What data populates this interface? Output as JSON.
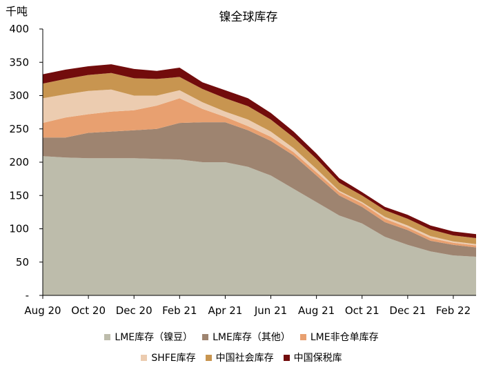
{
  "chart_data": {
    "type": "area",
    "stacked": true,
    "title": "镍全球库存",
    "unit_label": "千吨",
    "ylim": [
      0,
      400
    ],
    "y_ticks": [
      0,
      50,
      100,
      150,
      200,
      250,
      300,
      350,
      400
    ],
    "y_tick_labels": [
      "-",
      "50",
      "100",
      "150",
      "200",
      "250",
      "300",
      "350",
      "400"
    ],
    "x": [
      "2020-08",
      "2020-09",
      "2020-10",
      "2020-11",
      "2020-12",
      "2021-01",
      "2021-02",
      "2021-03",
      "2021-04",
      "2021-05",
      "2021-06",
      "2021-07",
      "2021-08",
      "2021-09",
      "2021-10",
      "2021-11",
      "2021-12",
      "2022-01",
      "2022-02",
      "2022-03"
    ],
    "x_tick_labels": [
      "Aug 20",
      "Oct 20",
      "Dec 20",
      "Feb 21",
      "Apr 21",
      "Jun 21",
      "Aug 21",
      "Oct 21",
      "Dec 21",
      "Feb 22"
    ],
    "series": [
      {
        "name": "LME库存（镍豆）",
        "color": "#bdbcab",
        "values": [
          209,
          207,
          206,
          206,
          206,
          205,
          204,
          200,
          200,
          193,
          180,
          160,
          140,
          120,
          108,
          88,
          76,
          66,
          60,
          58
        ]
      },
      {
        "name": "LME库存（其他）",
        "color": "#9e8470",
        "values": [
          28,
          30,
          38,
          40,
          42,
          45,
          55,
          60,
          60,
          55,
          52,
          50,
          40,
          30,
          25,
          22,
          22,
          16,
          16,
          14
        ]
      },
      {
        "name": "LME非仓单库存",
        "color": "#e8a070",
        "values": [
          22,
          30,
          28,
          30,
          30,
          35,
          37,
          20,
          8,
          6,
          6,
          5,
          5,
          5,
          5,
          5,
          4,
          4,
          3,
          3
        ]
      },
      {
        "name": "SHFE库存",
        "color": "#ecccb0",
        "values": [
          37,
          35,
          35,
          33,
          22,
          15,
          12,
          10,
          8,
          10,
          8,
          6,
          5,
          2,
          2,
          3,
          3,
          3,
          2,
          2
        ]
      },
      {
        "name": "中国社会库存",
        "color": "#c89550",
        "values": [
          22,
          23,
          24,
          25,
          26,
          25,
          20,
          20,
          20,
          20,
          18,
          16,
          15,
          12,
          10,
          10,
          10,
          10,
          9,
          9
        ]
      },
      {
        "name": "中国保税库",
        "color": "#720c0c",
        "values": [
          14,
          14,
          13,
          13,
          14,
          12,
          14,
          10,
          12,
          12,
          10,
          9,
          8,
          7,
          5,
          5,
          6,
          6,
          6,
          6
        ]
      }
    ],
    "grid": false,
    "legend_position": "bottom"
  }
}
